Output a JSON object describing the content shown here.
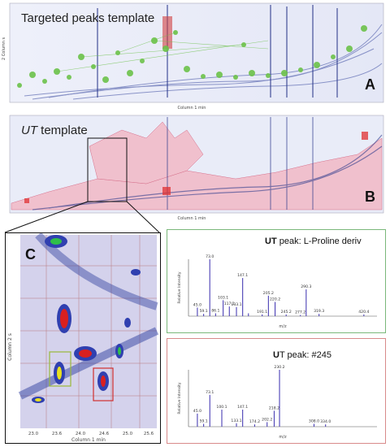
{
  "panel_a": {
    "title": "Targeted peaks template",
    "letter": "A",
    "y_axis_label": "2 Column s",
    "x_axis_label": "Column 1 min"
  },
  "panel_b": {
    "title_italic": "UT",
    "title_rest": " template",
    "letter": "B",
    "y_axis_label": "2 Column s",
    "x_axis_label": "Column 1 min"
  },
  "panel_c": {
    "letter": "C",
    "x_axis_label": "Column 1 min",
    "y_axis_label": "Column 2 s",
    "x_ticks": [
      "23.0",
      "23.6",
      "24.0",
      "24.6",
      "25.0",
      "25.6"
    ]
  },
  "spectrum_1": {
    "title_bold": "UT",
    "title_rest": " peak: L-Proline deriv",
    "border_color": "#7ab87a",
    "x_label": "m/z",
    "y_label": "Relative Intensity",
    "chart_data": {
      "type": "bar",
      "x": [
        45.0,
        59.1,
        73.0,
        86.1,
        103.1,
        117.1,
        133.1,
        147.1,
        160.1,
        191.1,
        205.2,
        220.2,
        245.2,
        277.2,
        290.3,
        319.3,
        420.4
      ],
      "values": [
        15,
        4,
        100,
        5,
        28,
        17,
        16,
        67,
        5,
        3,
        36,
        25,
        3,
        2,
        47,
        4,
        3
      ],
      "labels": [
        "45.0",
        "59.1",
        "73.0",
        "86.1",
        "103.1",
        "117.1",
        "133.1",
        "147.1",
        "",
        "191.1",
        "205.2",
        "220.2",
        "245.2",
        "277.2",
        "290.3",
        "319.3",
        "420.4"
      ],
      "xlim": [
        25,
        450
      ],
      "ylim": [
        0,
        100
      ]
    }
  },
  "spectrum_2": {
    "title_bold": "U",
    "title_rest": "T peak: #245",
    "border_color": "#d88a8a",
    "x_label": "m/z",
    "y_label": "Relative Intensity",
    "chart_data": {
      "type": "bar",
      "x": [
        45.0,
        59.1,
        73.1,
        100.1,
        133.1,
        147.1,
        174.2,
        202.2,
        218.2,
        230.2,
        308.0,
        334.0
      ],
      "values": [
        23,
        5,
        56,
        30,
        6,
        30,
        4,
        8,
        28,
        100,
        5,
        4
      ],
      "labels": [
        "45.0",
        "59.1",
        "73.1",
        "100.1",
        "133.1",
        "147.1",
        "174.2",
        "202.2",
        "218.2",
        "230.2",
        "308.0",
        "334.0"
      ],
      "xlim": [
        25,
        450
      ],
      "ylim": [
        0,
        100
      ]
    }
  }
}
